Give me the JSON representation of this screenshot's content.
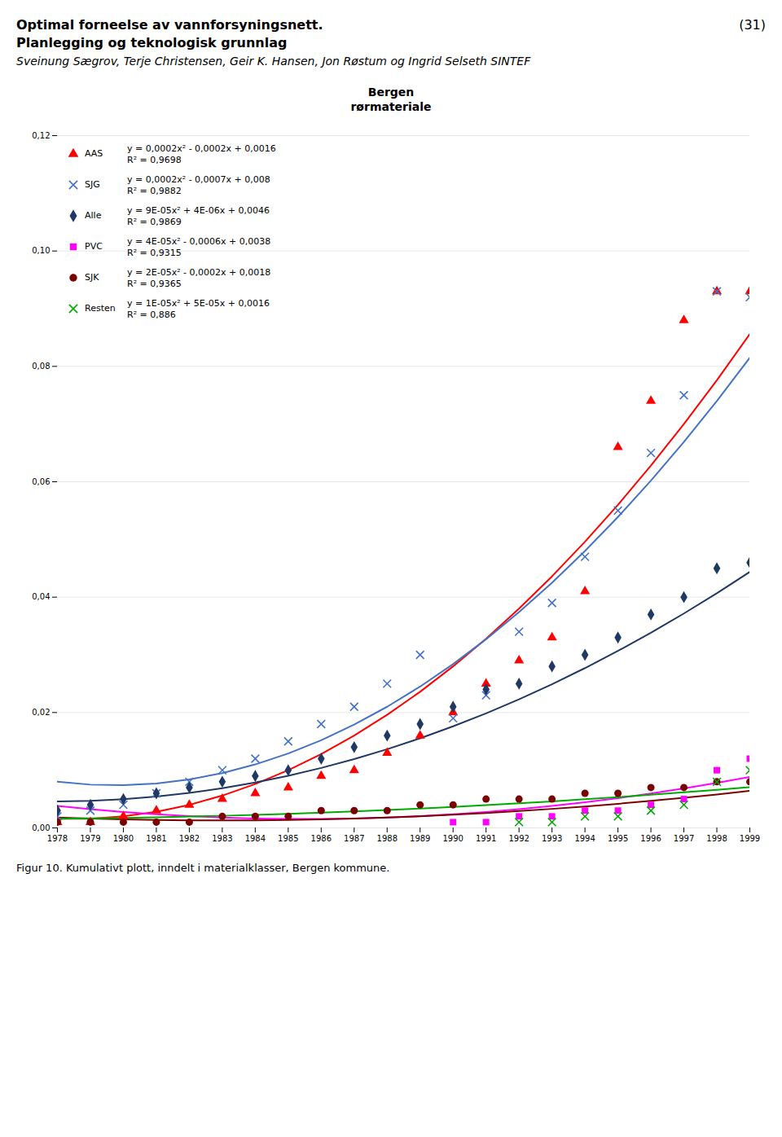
{
  "chart_data": {
    "type": "scatter",
    "title": "Bergen",
    "subtitle": "rørmateriale",
    "annotations": [
      "Optimal forneelse av vannforsyningsnett.",
      "(31)",
      "Planlegging og teknologisk grunnlag",
      "Sveinung Sægrov, Terje Christensen, Geir K. Hansen, Jon Røstum og Ingrid Selseth SINTEF"
    ],
    "caption": "Figur 10. Kumulativt plott, inndelt i materialklasser, Bergen kommune.",
    "xlim": [
      1978,
      1999
    ],
    "ylim": [
      0.0,
      0.12
    ],
    "xticks": [
      1978,
      1979,
      1980,
      1981,
      1982,
      1983,
      1984,
      1985,
      1986,
      1987,
      1988,
      1989,
      1990,
      1991,
      1992,
      1993,
      1994,
      1995,
      1996,
      1997,
      1998,
      1999
    ],
    "yticks": [
      {
        "value": 0.0,
        "label": "0,00"
      },
      {
        "value": 0.02,
        "label": "0,02"
      },
      {
        "value": 0.04,
        "label": "0,04"
      },
      {
        "value": 0.06,
        "label": "0,06"
      },
      {
        "value": 0.08,
        "label": "0,08"
      },
      {
        "value": 0.1,
        "label": "0,10"
      },
      {
        "value": 0.12,
        "label": "0,12"
      }
    ],
    "grid": true,
    "legend": "upper left",
    "trend_x": [
      1978,
      1979,
      1980,
      1981,
      1982,
      1983,
      1984,
      1985,
      1986,
      1987,
      1988,
      1989,
      1990,
      1991,
      1992,
      1993,
      1994,
      1995,
      1996,
      1997,
      1998,
      1999
    ],
    "series": [
      {
        "name": "AAS",
        "color": "#FF0000",
        "marker": "triangle",
        "equation": "y = 0,0002x² - 0,0002x + 0,0016",
        "r2": "R² = 0,9698",
        "x": [
          1978,
          1979,
          1980,
          1981,
          1982,
          1983,
          1984,
          1985,
          1986,
          1987,
          1988,
          1989,
          1990,
          1991,
          1992,
          1993,
          1994,
          1995,
          1996,
          1997,
          1998,
          1999
        ],
        "values": [
          0.001,
          0.001,
          0.002,
          0.003,
          0.004,
          0.005,
          0.006,
          0.007,
          0.009,
          0.01,
          0.013,
          0.016,
          0.02,
          0.025,
          0.029,
          0.033,
          0.041,
          0.066,
          0.074,
          0.088,
          0.093,
          0.093
        ],
        "trend_values": [
          0.0016,
          0.0016,
          0.002,
          0.0028,
          0.004,
          0.0056,
          0.0076,
          0.01,
          0.0128,
          0.016,
          0.0196,
          0.0236,
          0.028,
          0.0328,
          0.038,
          0.0436,
          0.0496,
          0.056,
          0.0628,
          0.07,
          0.0776,
          0.0856
        ]
      },
      {
        "name": "SJG",
        "color": "#4472C4",
        "marker": "x",
        "equation": "y = 0,0002x² - 0,0007x + 0,008",
        "r2": "R² = 0,9882",
        "x": [
          1978,
          1979,
          1980,
          1981,
          1982,
          1983,
          1984,
          1985,
          1986,
          1987,
          1988,
          1989,
          1990,
          1991,
          1992,
          1993,
          1994,
          1995,
          1996,
          1997,
          1998,
          1999
        ],
        "values": [
          0.002,
          0.003,
          0.004,
          0.006,
          0.008,
          0.01,
          0.012,
          0.015,
          0.018,
          0.021,
          0.025,
          0.03,
          0.019,
          0.023,
          0.034,
          0.039,
          0.047,
          0.055,
          0.065,
          0.075,
          0.093,
          0.092
        ],
        "trend_values": [
          0.008,
          0.0075,
          0.0074,
          0.0077,
          0.0084,
          0.0095,
          0.011,
          0.0129,
          0.0152,
          0.0179,
          0.021,
          0.0245,
          0.0284,
          0.0327,
          0.0374,
          0.0425,
          0.048,
          0.0539,
          0.0602,
          0.0669,
          0.074,
          0.0815
        ]
      },
      {
        "name": "Alle",
        "color": "#1F3864",
        "marker": "diamond",
        "equation": "y = 9E-05x² + 4E-06x + 0,0046",
        "r2": "R² = 0,9869",
        "x": [
          1978,
          1979,
          1980,
          1981,
          1982,
          1983,
          1984,
          1985,
          1986,
          1987,
          1988,
          1989,
          1990,
          1991,
          1992,
          1993,
          1994,
          1995,
          1996,
          1997,
          1998,
          1999
        ],
        "values": [
          0.003,
          0.004,
          0.005,
          0.006,
          0.007,
          0.008,
          0.009,
          0.01,
          0.012,
          0.014,
          0.016,
          0.018,
          0.021,
          0.024,
          0.025,
          0.028,
          0.03,
          0.033,
          0.037,
          0.04,
          0.045,
          0.046
        ],
        "trend_values": [
          0.0046,
          0.004694,
          0.004968,
          0.005422,
          0.006056,
          0.00687,
          0.007864,
          0.009038,
          0.010392,
          0.011926,
          0.01364,
          0.015534,
          0.017608,
          0.019862,
          0.022296,
          0.02491,
          0.027704,
          0.030678,
          0.033832,
          0.037166,
          0.04068,
          0.044374
        ]
      },
      {
        "name": "PVC",
        "color": "#FF00FF",
        "marker": "square",
        "equation": "y = 4E-05x² - 0,0006x + 0,0038",
        "r2": "R² = 0,9315",
        "x": [
          1990,
          1991,
          1992,
          1993,
          1994,
          1995,
          1996,
          1997,
          1998,
          1999
        ],
        "values": [
          0.001,
          0.001,
          0.002,
          0.002,
          0.003,
          0.003,
          0.004,
          0.005,
          0.01,
          0.012
        ],
        "trend_values": [
          0.0038,
          0.00324,
          0.00276,
          0.00236,
          0.00204,
          0.0018,
          0.00164,
          0.00156,
          0.00156,
          0.00164,
          0.0018,
          0.00204,
          0.00236,
          0.00276,
          0.00324,
          0.0038,
          0.00444,
          0.00516,
          0.00596,
          0.00684,
          0.0078,
          0.00884
        ]
      },
      {
        "name": "SJK",
        "color": "#7B0000",
        "marker": "circle",
        "equation": "y = 2E-05x² - 0,0002x + 0,0018",
        "r2": "R² = 0,9365",
        "x": [
          1978,
          1979,
          1980,
          1981,
          1982,
          1983,
          1984,
          1985,
          1986,
          1987,
          1988,
          1989,
          1990,
          1991,
          1992,
          1993,
          1994,
          1995,
          1996,
          1997,
          1998,
          1999
        ],
        "values": [
          0.001,
          0.001,
          0.001,
          0.001,
          0.001,
          0.002,
          0.002,
          0.002,
          0.003,
          0.003,
          0.003,
          0.004,
          0.004,
          0.005,
          0.005,
          0.005,
          0.006,
          0.006,
          0.007,
          0.007,
          0.008,
          0.008
        ],
        "trend_values": [
          0.0018,
          0.00162,
          0.00148,
          0.00138,
          0.00132,
          0.0013,
          0.00132,
          0.00138,
          0.00148,
          0.00162,
          0.0018,
          0.00202,
          0.00228,
          0.00258,
          0.00292,
          0.0033,
          0.00372,
          0.00418,
          0.00468,
          0.00522,
          0.0058,
          0.00642
        ]
      },
      {
        "name": "Resten",
        "color": "#00AA00",
        "marker": "x",
        "equation": "y = 1E-05x² + 5E-05x + 0,0016",
        "r2": "R² = 0,886",
        "x": [
          1992,
          1993,
          1994,
          1995,
          1996,
          1997,
          1998,
          1999
        ],
        "values": [
          0.001,
          0.001,
          0.002,
          0.002,
          0.003,
          0.004,
          0.008,
          0.01
        ],
        "trend_values": [
          0.0016,
          0.00166,
          0.00174,
          0.00184,
          0.00196,
          0.0021,
          0.00226,
          0.00244,
          0.00264,
          0.00286,
          0.0031,
          0.00336,
          0.00364,
          0.00394,
          0.00426,
          0.0046,
          0.00496,
          0.00534,
          0.00574,
          0.00616,
          0.0066,
          0.00706
        ]
      }
    ]
  }
}
